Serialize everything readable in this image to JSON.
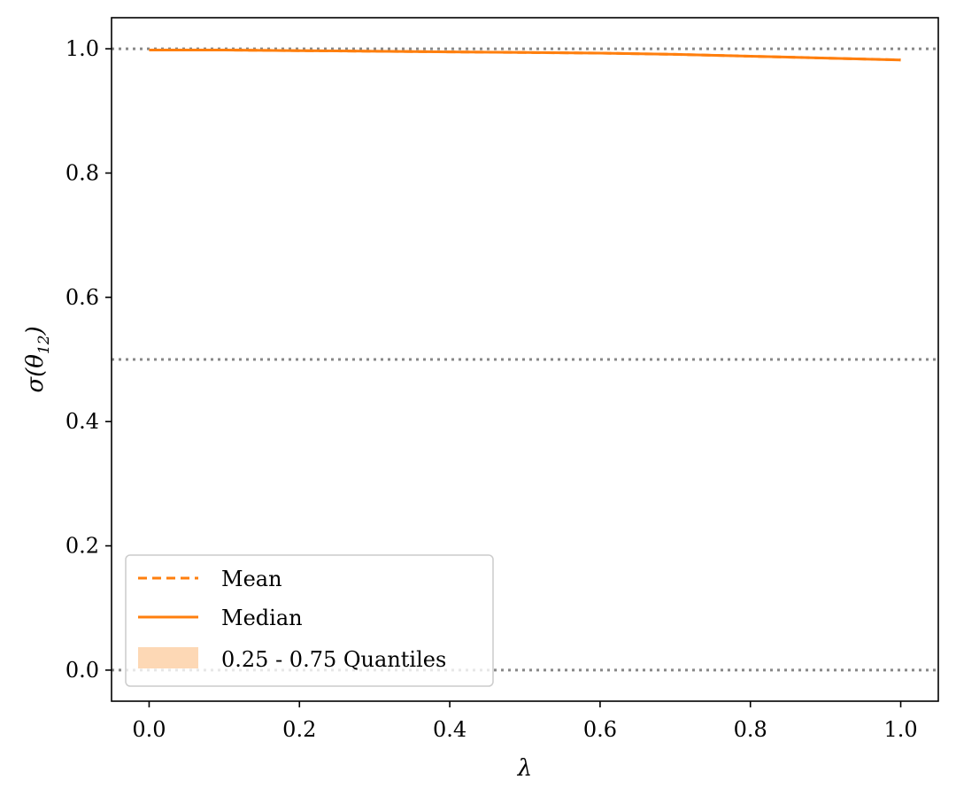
{
  "chart_data": {
    "type": "line",
    "title": "",
    "xlabel": "λ",
    "ylabel": "σ(θ",
    "ylabel_subscript": "12",
    "ylabel_close": ")",
    "xlim": [
      -0.05,
      1.05
    ],
    "ylim": [
      -0.05,
      1.05
    ],
    "x_ticks": [
      0.0,
      0.2,
      0.4,
      0.6,
      0.8,
      1.0
    ],
    "x_tick_labels": [
      "0.0",
      "0.2",
      "0.4",
      "0.6",
      "0.8",
      "1.0"
    ],
    "y_ticks": [
      0.0,
      0.2,
      0.4,
      0.6,
      0.8,
      1.0
    ],
    "y_tick_labels": [
      "0.0",
      "0.2",
      "0.4",
      "0.6",
      "0.8",
      "1.0"
    ],
    "reference_lines": [
      {
        "y": 1.0,
        "style": "dotted",
        "color": "#888888"
      },
      {
        "y": 0.5,
        "style": "dotted",
        "color": "#888888"
      },
      {
        "y": 0.0,
        "style": "dotted",
        "color": "#888888"
      }
    ],
    "series": [
      {
        "name": "Mean",
        "kind": "line",
        "style": "dashed",
        "color": "#ff7f0e",
        "x": [
          0.0,
          0.1,
          0.2,
          0.3,
          0.4,
          0.5,
          0.6,
          0.7,
          0.8,
          0.9,
          1.0
        ],
        "y": [
          0.998,
          0.998,
          0.997,
          0.996,
          0.995,
          0.994,
          0.993,
          0.991,
          0.988,
          0.985,
          0.982
        ]
      },
      {
        "name": "Median",
        "kind": "line",
        "style": "solid",
        "color": "#ff7f0e",
        "x": [
          0.0,
          0.1,
          0.2,
          0.3,
          0.4,
          0.5,
          0.6,
          0.7,
          0.8,
          0.9,
          1.0
        ],
        "y": [
          0.998,
          0.998,
          0.997,
          0.996,
          0.995,
          0.994,
          0.993,
          0.991,
          0.988,
          0.985,
          0.982
        ]
      },
      {
        "name": "0.25 - 0.75 Quantiles",
        "kind": "band",
        "color": "#fdd8b5",
        "x": [
          0.0,
          0.1,
          0.2,
          0.3,
          0.4,
          0.5,
          0.6,
          0.7,
          0.8,
          0.9,
          1.0
        ],
        "lower": [
          0.998,
          0.998,
          0.997,
          0.996,
          0.995,
          0.994,
          0.993,
          0.991,
          0.988,
          0.985,
          0.982
        ],
        "upper": [
          0.998,
          0.998,
          0.997,
          0.996,
          0.995,
          0.994,
          0.993,
          0.991,
          0.988,
          0.985,
          0.982
        ]
      }
    ],
    "legend": {
      "placement": "lower-left",
      "entries": [
        "Mean",
        "Median",
        "0.25 - 0.75 Quantiles"
      ]
    },
    "grid": false
  }
}
